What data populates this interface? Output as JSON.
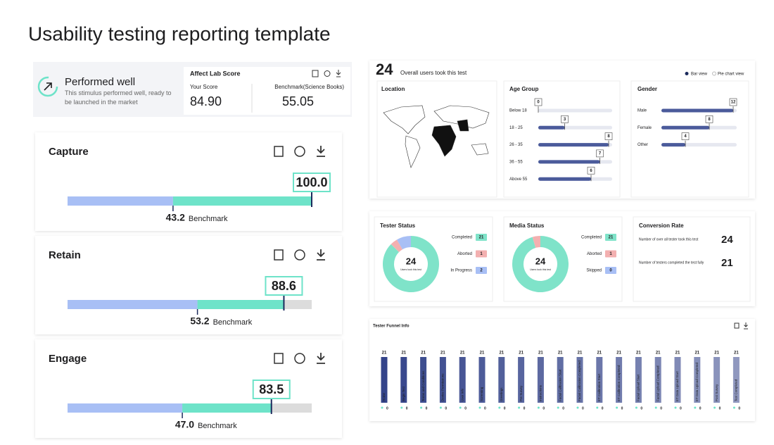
{
  "title": "Usability testing reporting template",
  "summary": {
    "status": "Performed well",
    "description": "This stimulus performed well, ready to be launched in the market",
    "card_title": "Affect Lab Score",
    "your_score_label": "Your Score",
    "your_score": {
      "value": 84.9,
      "label": "84.90"
    },
    "benchmark_label": "Benchmark(Science Books)",
    "benchmark": 55.05
  },
  "metrics": {
    "xlim": [
      0,
      100
    ],
    "benchmark_label": "Benchmark",
    "colors": {
      "benchmark": "#a8bff5",
      "score": "#6ee3c9",
      "rest": "#dcdcdc"
    },
    "items": [
      {
        "name": "Capture",
        "score": {
          "value": 100,
          "label": "100.0"
        },
        "benchmark": 43.2
      },
      {
        "name": "Retain",
        "score": 88.6,
        "benchmark": 53.2
      },
      {
        "name": "Engage",
        "score": 83.5,
        "benchmark": {
          "value": 47,
          "label": "47.0"
        }
      }
    ]
  },
  "users": {
    "count": 24,
    "text": "Overall users took this test",
    "views": [
      "Bar view",
      "Pie chart view"
    ],
    "location": {
      "title": "Location"
    },
    "age": {
      "title": "Age Group",
      "categories": [
        "Below 18",
        "18 - 25",
        "26 - 35",
        "36 - 55",
        "Above 55"
      ],
      "values": [
        0,
        3,
        8,
        7,
        6
      ],
      "color": "#4b5b9b"
    },
    "gender": {
      "title": "Gender",
      "categories": [
        "Male",
        "Female",
        "Other"
      ],
      "values": [
        12,
        8,
        4
      ],
      "color": "#4b5b9b"
    }
  },
  "status": {
    "tester": {
      "title": "Tester Status",
      "total": 24,
      "total_label": "Users took this test",
      "items": [
        {
          "name": "Completed",
          "value": 21,
          "color": "#7fe3c9"
        },
        {
          "name": "Aborted",
          "value": 1,
          "color": "#f3b0b0"
        },
        {
          "name": "In Progress",
          "value": 2,
          "color": "#a8bff5"
        }
      ]
    },
    "media": {
      "title": "Media Status",
      "total": 24,
      "total_label": "Users took this test",
      "items": [
        {
          "name": "Completed",
          "value": 21,
          "color": "#7fe3c9"
        },
        {
          "name": "Aborted",
          "value": 1,
          "color": "#f3b0b0"
        },
        {
          "name": "Skipped",
          "value": 0,
          "color": "#a8bff5"
        }
      ]
    },
    "conversion": {
      "title": "Conversion Rate",
      "rows": [
        {
          "label": "Number of over all tester took this test",
          "value": 24
        },
        {
          "label": "Number of testers completed the test fully",
          "value": 21
        }
      ]
    }
  },
  "funnel": {
    "title": "Tester Funnel Info",
    "steps": [
      "Home",
      "Begin Test",
      "Terms and Conditions",
      "Device Permissions",
      "User Info",
      "Screening",
      "Greetings",
      "Pre Survey",
      "Instructions",
      "Facial Calibration Start",
      "Facial Calibration Completed",
      "ET Calibration Start",
      "ET Calibration Completed",
      "Facial Upload Start",
      "Facial Upload Completed",
      "ET Data Upload Start",
      "ET Data Upload Completed",
      "Post Survey",
      "Test Completed"
    ],
    "values": [
      21,
      21,
      21,
      21,
      21,
      21,
      21,
      21,
      21,
      21,
      21,
      21,
      21,
      21,
      21,
      21,
      21,
      21,
      21
    ],
    "dropoffs": [
      0,
      0,
      0,
      0,
      0,
      0,
      0,
      0,
      0,
      0,
      0,
      0,
      0,
      0,
      0,
      0,
      0,
      0,
      0
    ],
    "color": "#34448a"
  }
}
